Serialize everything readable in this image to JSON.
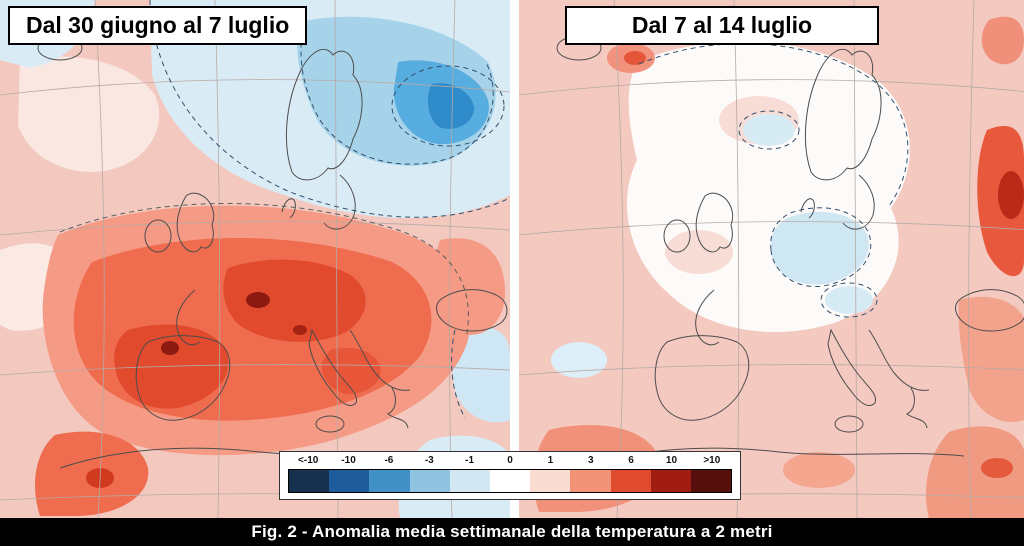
{
  "figure": {
    "caption": "Fig. 2 - Anomalia media settimanale della temperatura a 2 metri"
  },
  "panels": [
    {
      "title": "Dal 30 giugno al 7 luglio"
    },
    {
      "title": "Dal 7 al 14 luglio"
    }
  ],
  "legend": {
    "entries": [
      {
        "label": "<-10",
        "color": "#16314e"
      },
      {
        "label": "-10",
        "color": "#1e5c9c"
      },
      {
        "label": "-6",
        "color": "#4191c6"
      },
      {
        "label": "-3",
        "color": "#8fc3e0"
      },
      {
        "label": "-1",
        "color": "#d3e7f2"
      },
      {
        "label": "0",
        "color": "#ffffff"
      },
      {
        "label": "1",
        "color": "#fadcd2"
      },
      {
        "label": "3",
        "color": "#f29277"
      },
      {
        "label": "6",
        "color": "#e04a2e"
      },
      {
        "label": "10",
        "color": "#a11d14"
      },
      {
        "label": ">10",
        "color": "#55100b"
      }
    ]
  }
}
